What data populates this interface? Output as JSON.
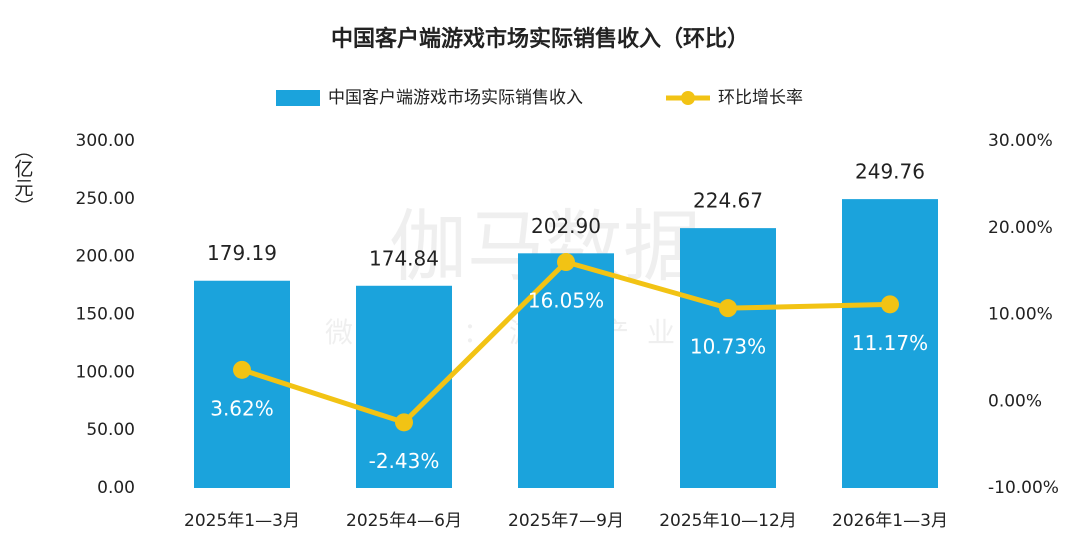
{
  "chart_data": {
    "type": "bar_line",
    "title": "中国客户端游戏市场实际销售收入（环比）",
    "ylabel": "（亿元）",
    "watermark": "伽马数据",
    "watermark_sub": "微信号：游戏产业报告",
    "categories": [
      "2025年1—3月",
      "2025年4—6月",
      "2025年7—9月",
      "2025年10—12月",
      "2026年1—3月"
    ],
    "series": [
      {
        "name": "中国客户端游戏市场实际销售收入",
        "type": "bar",
        "color": "#1ba3dc",
        "values": [
          179.19,
          174.84,
          202.9,
          224.67,
          249.76
        ],
        "value_labels": [
          "179.19",
          "174.84",
          "202.90",
          "224.67",
          "249.76"
        ]
      },
      {
        "name": "环比增长率",
        "type": "line",
        "axis": "y2",
        "color": "#f2c314",
        "values": [
          3.62,
          -2.43,
          16.05,
          10.73,
          11.17
        ],
        "value_labels": [
          "3.62%",
          "-2.43%",
          "16.05%",
          "10.73%",
          "11.17%"
        ]
      }
    ],
    "ylim": [
      0,
      300
    ],
    "yticks": [
      {
        "value": 0,
        "label": "0.00"
      },
      {
        "value": 50,
        "label": "50.00"
      },
      {
        "value": 100,
        "label": "100.00"
      },
      {
        "value": 150,
        "label": "150.00"
      },
      {
        "value": 200,
        "label": "200.00"
      },
      {
        "value": 250,
        "label": "250.00"
      },
      {
        "value": 300,
        "label": "300.00"
      }
    ],
    "y2lim": [
      -10,
      30
    ],
    "y2ticks": [
      {
        "value": -10,
        "label": "-10.00%"
      },
      {
        "value": 0,
        "label": "0.00%"
      },
      {
        "value": 10,
        "label": "10.00%"
      },
      {
        "value": 20,
        "label": "20.00%"
      },
      {
        "value": 30,
        "label": "30.00%"
      }
    ],
    "grid": false,
    "legend": "top"
  }
}
